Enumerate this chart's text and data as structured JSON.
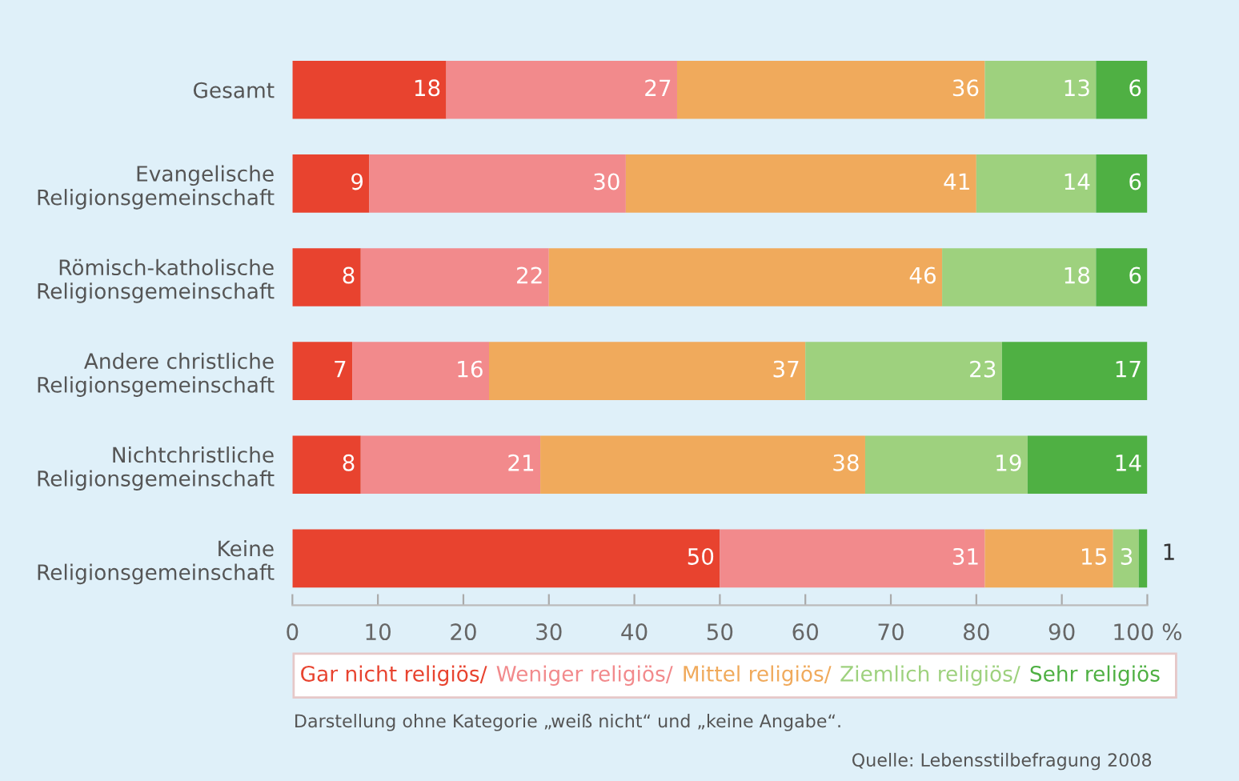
{
  "chart_data": {
    "type": "bar",
    "orientation": "horizontal",
    "stacked": true,
    "data_labels": true,
    "categories": [
      "Gesamt",
      "Evangelische\nReligionsgemeinschaft",
      "Römisch-katholische\nReligionsgemeinschaft",
      "Andere christliche\nReligionsgemeinschaft",
      "Nichtchristliche\nReligionsgemeinschaft",
      "Keine\nReligionsgemeinschaft"
    ],
    "series": [
      {
        "name": "Gar nicht religiös/",
        "color": "#e8432f",
        "values": [
          18,
          9,
          8,
          7,
          8,
          50
        ]
      },
      {
        "name": "Weniger religiös/",
        "color": "#f28a8c",
        "values": [
          27,
          30,
          22,
          16,
          21,
          31
        ]
      },
      {
        "name": "Mittel religiös/",
        "color": "#f0aa5c",
        "values": [
          36,
          41,
          46,
          37,
          38,
          15
        ]
      },
      {
        "name": "Ziemlich religiös/",
        "color": "#9ed17e",
        "values": [
          13,
          14,
          18,
          23,
          19,
          3
        ]
      },
      {
        "name": "Sehr religiös",
        "color": "#4fb043",
        "values": [
          6,
          6,
          6,
          17,
          14,
          1
        ]
      }
    ],
    "xlim": [
      0,
      100
    ],
    "xticks": [
      0,
      10,
      20,
      30,
      40,
      50,
      60,
      70,
      80,
      90,
      {
        "value": 100,
        "label": "100 %"
      }
    ],
    "grid": false,
    "legend": "bottom",
    "annotations": [
      "Darstellung ohne Kategorie „weiß nicht“ und „keine Angabe“.",
      "Quelle: Lebensstilbefragung 2008"
    ]
  }
}
